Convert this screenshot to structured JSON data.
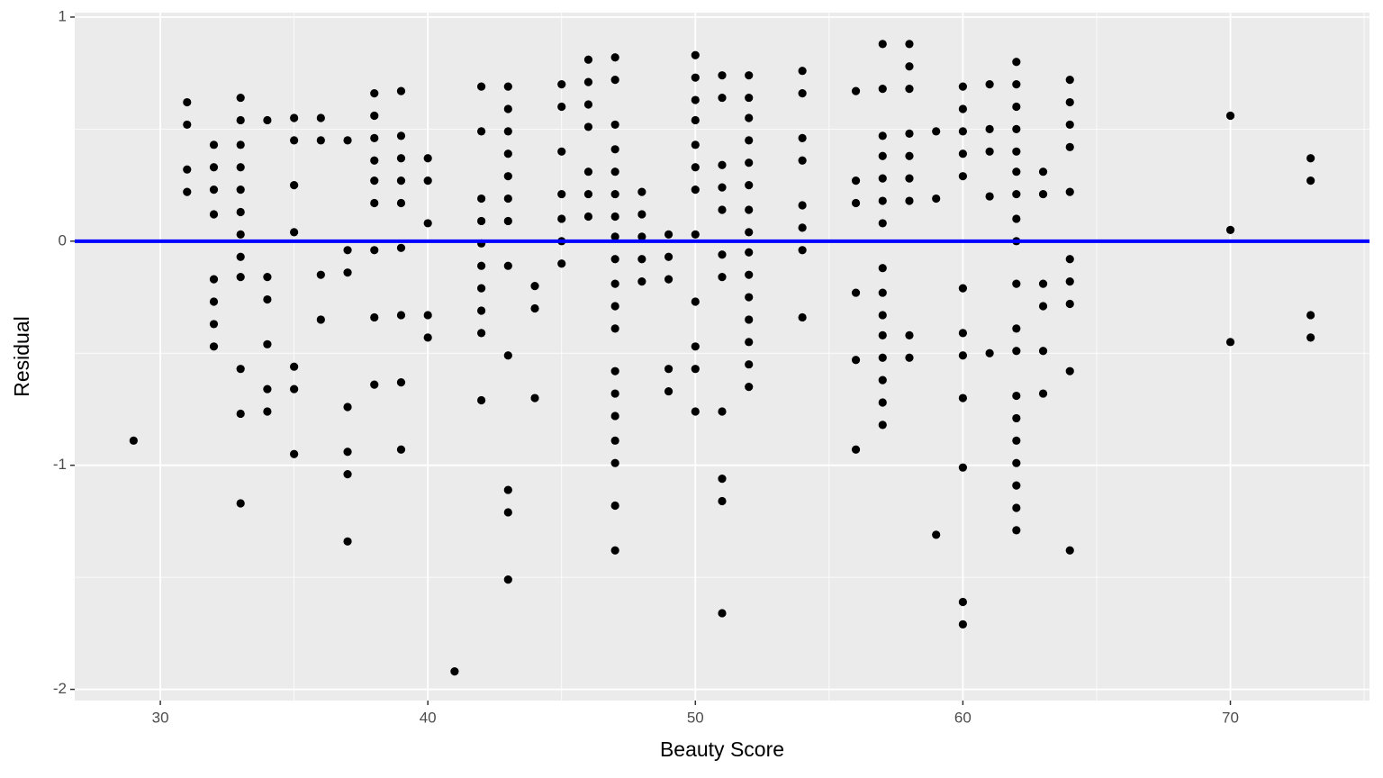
{
  "chart_data": {
    "type": "scatter",
    "x_label": "Beauty Score",
    "y_label": "Residual",
    "x": [
      29,
      31,
      31,
      31,
      31,
      32,
      32,
      32,
      32,
      32,
      32,
      32,
      32,
      33,
      33,
      33,
      33,
      33,
      33,
      33,
      33,
      33,
      33,
      33,
      33,
      34,
      34,
      34,
      34,
      34,
      34,
      35,
      35,
      35,
      35,
      35,
      35,
      35,
      36,
      36,
      36,
      36,
      37,
      37,
      37,
      37,
      37,
      37,
      37,
      38,
      38,
      38,
      38,
      38,
      38,
      38,
      38,
      38,
      39,
      39,
      39,
      39,
      39,
      39,
      39,
      39,
      39,
      40,
      40,
      40,
      40,
      40,
      41,
      42,
      42,
      42,
      42,
      42,
      42,
      42,
      42,
      42,
      42,
      43,
      43,
      43,
      43,
      43,
      43,
      43,
      43,
      43,
      43,
      43,
      43,
      44,
      44,
      44,
      45,
      45,
      45,
      45,
      45,
      45,
      45,
      46,
      46,
      46,
      46,
      46,
      46,
      46,
      47,
      47,
      47,
      47,
      47,
      47,
      47,
      47,
      47,
      47,
      47,
      47,
      47,
      47,
      47,
      47,
      47,
      47,
      47,
      48,
      48,
      48,
      48,
      48,
      49,
      49,
      49,
      49,
      49,
      50,
      50,
      50,
      50,
      50,
      50,
      50,
      50,
      50,
      50,
      50,
      50,
      51,
      51,
      51,
      51,
      51,
      51,
      51,
      51,
      51,
      51,
      51,
      52,
      52,
      52,
      52,
      52,
      52,
      52,
      52,
      52,
      52,
      52,
      52,
      52,
      52,
      52,
      54,
      54,
      54,
      54,
      54,
      54,
      54,
      54,
      56,
      56,
      56,
      56,
      56,
      56,
      57,
      57,
      57,
      57,
      57,
      57,
      57,
      57,
      57,
      57,
      57,
      57,
      57,
      57,
      57,
      58,
      58,
      58,
      58,
      58,
      58,
      58,
      58,
      58,
      59,
      59,
      59,
      60,
      60,
      60,
      60,
      60,
      60,
      60,
      60,
      60,
      60,
      60,
      60,
      61,
      61,
      61,
      61,
      61,
      62,
      62,
      62,
      62,
      62,
      62,
      62,
      62,
      62,
      62,
      62,
      62,
      62,
      62,
      62,
      62,
      62,
      62,
      62,
      63,
      63,
      63,
      63,
      63,
      63,
      64,
      64,
      64,
      64,
      64,
      64,
      64,
      64,
      64,
      64,
      70,
      70,
      70,
      73,
      73,
      73,
      73
    ],
    "values": [
      -0.89,
      0.62,
      0.52,
      0.32,
      0.22,
      0.43,
      0.33,
      0.23,
      0.12,
      -0.17,
      -0.27,
      -0.37,
      -0.47,
      0.64,
      0.54,
      0.43,
      0.33,
      0.23,
      0.13,
      0.03,
      -0.07,
      -0.16,
      -0.57,
      -0.77,
      -1.17,
      0.54,
      -0.16,
      -0.26,
      -0.46,
      -0.66,
      -0.76,
      0.55,
      0.45,
      0.25,
      0.04,
      -0.56,
      -0.66,
      -0.95,
      0.55,
      0.45,
      -0.15,
      -0.35,
      0.45,
      -0.04,
      -0.14,
      -0.74,
      -0.94,
      -1.04,
      -1.34,
      0.66,
      0.56,
      0.46,
      0.36,
      0.27,
      0.17,
      -0.04,
      -0.34,
      -0.64,
      0.67,
      0.47,
      0.37,
      0.27,
      0.17,
      -0.03,
      -0.33,
      -0.63,
      -0.93,
      0.37,
      0.27,
      0.08,
      -0.33,
      -0.43,
      -1.92,
      0.69,
      0.49,
      0.19,
      0.09,
      -0.01,
      -0.11,
      -0.21,
      -0.31,
      -0.41,
      -0.71,
      0.69,
      0.59,
      0.49,
      0.39,
      0.29,
      0.19,
      0.09,
      -0.11,
      -0.51,
      -1.11,
      -1.21,
      -1.51,
      -0.2,
      -0.3,
      -0.7,
      0.7,
      0.6,
      0.4,
      0.21,
      0.1,
      0.0,
      -0.1,
      0.81,
      0.71,
      0.61,
      0.51,
      0.31,
      0.21,
      0.11,
      0.82,
      0.72,
      0.52,
      0.41,
      0.31,
      0.21,
      0.11,
      0.02,
      -0.08,
      -0.19,
      -0.29,
      -0.39,
      -0.58,
      -0.68,
      -0.78,
      -0.89,
      -0.99,
      -1.18,
      -1.38,
      0.22,
      0.12,
      0.02,
      -0.08,
      -0.18,
      0.03,
      -0.07,
      -0.17,
      -0.57,
      -0.67,
      0.83,
      0.73,
      0.63,
      0.54,
      0.43,
      0.33,
      0.23,
      0.03,
      -0.27,
      -0.47,
      -0.57,
      -0.76,
      0.74,
      0.64,
      0.34,
      0.24,
      0.14,
      -0.06,
      -0.16,
      -0.76,
      -1.06,
      -1.16,
      -1.66,
      0.74,
      0.64,
      0.55,
      0.45,
      0.35,
      0.25,
      0.14,
      0.04,
      -0.05,
      -0.15,
      -0.25,
      -0.35,
      -0.45,
      -0.55,
      -0.65,
      0.76,
      0.66,
      0.46,
      0.36,
      0.16,
      0.06,
      -0.04,
      -0.34,
      0.67,
      0.27,
      0.17,
      -0.23,
      -0.53,
      -0.93,
      0.88,
      0.68,
      0.47,
      0.38,
      0.28,
      0.18,
      0.08,
      -0.12,
      -0.23,
      -0.33,
      -0.42,
      -0.52,
      -0.62,
      -0.72,
      -0.82,
      0.88,
      0.78,
      0.68,
      0.48,
      0.38,
      0.28,
      0.18,
      -0.42,
      -0.52,
      0.49,
      0.19,
      -1.31,
      0.69,
      0.59,
      0.49,
      0.39,
      0.29,
      -0.21,
      -0.41,
      -0.51,
      -0.7,
      -1.01,
      -1.61,
      -1.71,
      0.7,
      0.5,
      0.4,
      0.2,
      -0.5,
      0.8,
      0.7,
      0.6,
      0.5,
      0.4,
      0.31,
      0.21,
      0.1,
      0.0,
      -0.19,
      -0.39,
      -0.49,
      -0.69,
      -0.79,
      -0.89,
      -0.99,
      -1.09,
      -1.19,
      -1.29,
      0.31,
      0.21,
      -0.19,
      -0.29,
      -0.49,
      -0.68,
      0.72,
      0.62,
      0.52,
      0.42,
      0.22,
      -0.08,
      -0.18,
      -0.28,
      -0.58,
      -1.38,
      0.56,
      0.05,
      -0.45,
      0.37,
      0.27,
      -0.33,
      -0.43
    ],
    "color": "#000000",
    "xlim": [
      26.8,
      75.2
    ],
    "ylim": [
      -2.05,
      1.02
    ],
    "xticks": [
      30,
      40,
      50,
      60,
      70
    ],
    "yticks": [
      -2,
      -1,
      0,
      1
    ],
    "x_minor_grid": [
      35,
      45,
      55,
      65,
      75
    ],
    "y_minor_grid": [
      -1.5,
      -0.5,
      0.5
    ],
    "grid": true,
    "hline": {
      "value": 0,
      "color": "#0000ff"
    }
  }
}
